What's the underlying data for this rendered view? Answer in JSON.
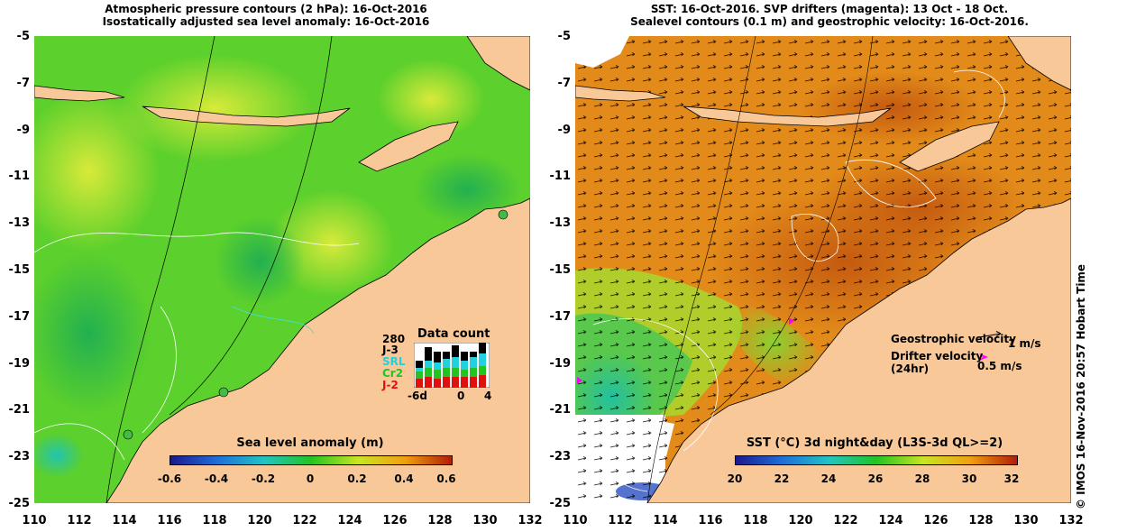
{
  "left_panel": {
    "title_line1": "Atmospheric pressure contours (2 hPa): 16-Oct-2016",
    "title_line2": "Isostatically adjusted sea level anomaly: 16-Oct-2016",
    "colorbar_title": "Sea level anomaly (m)",
    "colorbar_labels": [
      "-0.6",
      "-0.4",
      "-0.2",
      "0",
      "0.2",
      "0.4",
      "0.6"
    ],
    "colorbar_colors": [
      "#1a1a8c",
      "#1e6fd9",
      "#22c4c4",
      "#22c422",
      "#c8e622",
      "#f0a010",
      "#b01e0a"
    ]
  },
  "right_panel": {
    "title_line1": "SST: 16-Oct-2016. SVP drifters (magenta): 13 Oct - 18 Oct.",
    "title_line2": "Sealevel contours (0.1 m) and geostrophic velocity: 16-Oct-2016.",
    "colorbar_title": "SST (°C) 3d night&day (L3S-3d QL>=2)",
    "colorbar_labels": [
      "20",
      "22",
      "24",
      "26",
      "28",
      "30",
      "32"
    ],
    "colorbar_colors": [
      "#1a1a8c",
      "#1e6fd9",
      "#22c4c4",
      "#22c422",
      "#c8e622",
      "#f0a010",
      "#b01e0a"
    ],
    "geo_velocity_label": "Geostrophic velocity",
    "geo_velocity_unit": "1 m/s",
    "drifter_label_line1": "Drifter velocity",
    "drifter_label_line2": "(24hr)",
    "drifter_unit": "0.5 m/s",
    "drifter_color": "#ff00ff"
  },
  "axes": {
    "lat_labels": [
      "-5",
      "-7",
      "-9",
      "-11",
      "-13",
      "-15",
      "-17",
      "-19",
      "-21",
      "-23",
      "-25"
    ],
    "lon_labels": [
      "110",
      "112",
      "114",
      "116",
      "118",
      "120",
      "122",
      "124",
      "126",
      "128",
      "130",
      "132"
    ]
  },
  "data_count": {
    "title": "Data count",
    "max_value": "280",
    "missions": [
      {
        "name": "J-3",
        "color": "#000000"
      },
      {
        "name": "SRL",
        "color": "#22d0e0"
      },
      {
        "name": "Cr2",
        "color": "#22c422"
      },
      {
        "name": "J-2",
        "color": "#e01010"
      }
    ],
    "axis_labels": [
      "-6d",
      "0",
      "4"
    ]
  },
  "timestamp": "© IMOS 16-Nov-2016 20:57 Hobart Time",
  "colors": {
    "land": "#f8c898",
    "sla_base": "#5cd02c",
    "sst_base": "#e28a1a"
  }
}
